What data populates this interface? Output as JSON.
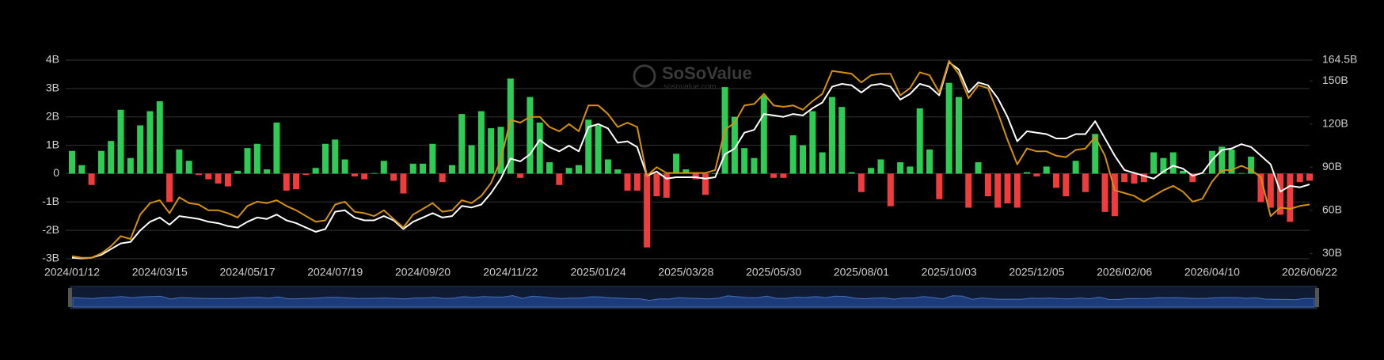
{
  "chart_data": {
    "type": "bar",
    "watermark": "SoSoValue",
    "watermark_sub": "sosovalue.com",
    "categories": [
      "2024/01/12",
      null,
      null,
      null,
      null,
      null,
      null,
      null,
      null,
      "2024/03/15",
      null,
      null,
      null,
      null,
      null,
      null,
      null,
      null,
      "2024/05/17",
      null,
      null,
      null,
      null,
      null,
      null,
      null,
      null,
      "2024/07/19",
      null,
      null,
      null,
      null,
      null,
      null,
      null,
      null,
      "2024/09/20",
      null,
      null,
      null,
      null,
      null,
      null,
      null,
      null,
      "2024/11/22",
      null,
      null,
      null,
      null,
      null,
      null,
      null,
      null,
      "2025/01/24",
      null,
      null,
      null,
      null,
      null,
      null,
      null,
      null,
      "2025/03/28",
      null,
      null,
      null,
      null,
      null,
      null,
      null,
      null,
      "2025/05/30",
      null,
      null,
      null,
      null,
      null,
      null,
      null,
      null,
      "2025/08/01",
      null,
      null,
      null,
      null,
      null,
      null,
      null,
      null,
      "2025/10/03",
      null,
      null,
      null,
      null,
      null,
      null,
      null,
      null,
      "2025/12/05",
      null,
      null,
      null,
      null,
      null,
      null,
      null,
      null,
      "2026/02/06",
      null,
      null,
      null,
      null,
      null,
      null,
      null,
      null,
      "2026/04/10",
      null,
      null,
      null,
      null,
      null,
      null,
      null,
      null,
      null,
      "2026/06/22"
    ],
    "series": [
      {
        "type": "bar",
        "positive_color": "#2ecc55",
        "negative_color": "#f03c3c",
        "values": [
          0.8,
          0.3,
          -0.4,
          0.8,
          1.15,
          2.25,
          0.55,
          1.7,
          2.2,
          2.55,
          -1.0,
          0.85,
          0.45,
          -0.05,
          -0.2,
          -0.35,
          -0.45,
          0.1,
          0.9,
          1.05,
          0.15,
          1.8,
          -0.6,
          -0.55,
          -0.05,
          0.2,
          1.05,
          1.2,
          0.5,
          -0.1,
          -0.2,
          0.02,
          0.45,
          -0.25,
          -0.7,
          0.35,
          0.35,
          1.05,
          -0.3,
          0.3,
          2.1,
          1.0,
          2.2,
          1.6,
          1.65,
          3.35,
          -0.15,
          2.7,
          1.8,
          0.4,
          -0.4,
          0.2,
          0.3,
          1.9,
          1.7,
          0.5,
          0.15,
          -0.6,
          -0.6,
          -2.6,
          -0.8,
          -0.85,
          0.7,
          0.15,
          -0.2,
          -0.75,
          0.02,
          3.05,
          2.0,
          0.9,
          0.55,
          2.75,
          -0.15,
          -0.15,
          1.35,
          1.0,
          2.2,
          0.75,
          2.7,
          2.35,
          0.05,
          -0.65,
          0.2,
          0.5,
          -1.15,
          0.4,
          0.25,
          2.3,
          0.85,
          -0.9,
          3.2,
          2.7,
          -1.2,
          0.4,
          -0.8,
          -1.2,
          -1.05,
          -1.2,
          0.05,
          -0.1,
          0.25,
          -0.5,
          -0.8,
          0.45,
          -0.65,
          1.4,
          -1.35,
          -1.5,
          -0.3,
          -0.35,
          -0.3,
          0.75,
          0.55,
          0.75,
          0.1,
          -0.3,
          0.02,
          0.8,
          0.95,
          0.85,
          0.02,
          0.6,
          -1.0,
          -1.2,
          -1.45,
          -1.7,
          -0.3,
          -0.25
        ]
      },
      {
        "type": "line",
        "axis": "y2",
        "color": "#ffffff",
        "values": [
          27,
          26.5,
          27,
          29,
          33,
          37,
          38,
          46,
          52,
          55,
          50,
          56,
          55,
          54,
          52,
          51,
          49,
          48,
          52,
          55,
          54,
          57,
          53,
          51,
          48,
          45,
          47,
          59,
          60,
          55,
          53,
          53,
          56,
          53,
          47,
          52,
          55,
          58,
          55,
          56,
          63,
          62,
          64,
          72,
          82,
          96,
          94,
          99,
          109,
          104,
          101,
          105,
          101,
          118,
          120,
          117,
          107,
          108,
          104,
          84,
          87,
          82,
          83,
          83,
          83,
          82,
          83,
          99,
          103,
          114,
          116,
          127,
          126,
          125,
          127,
          126,
          131,
          135,
          146,
          148,
          147,
          142,
          147,
          148,
          146,
          137,
          141,
          148,
          146,
          140,
          163,
          158,
          142,
          149,
          147,
          138,
          125,
          108,
          115,
          114,
          113,
          110,
          110,
          113,
          113,
          122,
          110,
          98,
          88,
          86,
          84,
          82,
          87,
          91,
          89,
          84,
          86,
          95,
          102,
          103,
          106,
          104,
          98,
          92,
          73,
          77,
          76,
          78
        ]
      },
      {
        "type": "line",
        "axis": "y2",
        "color": "#d4900f",
        "values": [
          28,
          27,
          27,
          30,
          35,
          42,
          40,
          57,
          65,
          67,
          58,
          69,
          65,
          64,
          60,
          60,
          58,
          55,
          63,
          66,
          65,
          67,
          63,
          60,
          56,
          52,
          53,
          64,
          66,
          59,
          58,
          56,
          60,
          54,
          48,
          57,
          61,
          65,
          59,
          60,
          67,
          65,
          70,
          79,
          95,
          123,
          121,
          125,
          125,
          118,
          115,
          120,
          115,
          133,
          133,
          127,
          118,
          121,
          118,
          84,
          90,
          86,
          86,
          86,
          86,
          86,
          88,
          116,
          121,
          133,
          134,
          141,
          133,
          132,
          133,
          130,
          136,
          141,
          157,
          156,
          155,
          149,
          154,
          155,
          155,
          140,
          145,
          156,
          154,
          142,
          164,
          155,
          138,
          147,
          145,
          128,
          109,
          92,
          103,
          101,
          101,
          98,
          97,
          102,
          103,
          111,
          98,
          74,
          72,
          70,
          66,
          70,
          74,
          77,
          73,
          66,
          68,
          80,
          88,
          88,
          91,
          88,
          83,
          56,
          62,
          61,
          63,
          64
        ]
      }
    ],
    "ylim": [
      -3,
      4
    ],
    "yticks": [
      {
        "value": -3,
        "label": "-3B"
      },
      {
        "value": -2,
        "label": "-2B"
      },
      {
        "value": -1,
        "label": "-1B"
      },
      0,
      {
        "value": 1,
        "label": "1B"
      },
      {
        "value": 2,
        "label": "2B"
      },
      {
        "value": 3,
        "label": "3B"
      },
      {
        "value": 4,
        "label": "4B"
      }
    ],
    "y2lim": [
      26.3,
      164.5
    ],
    "y2ticks": [
      {
        "value": 30,
        "label": "30B"
      },
      {
        "value": 60,
        "label": "60B"
      },
      {
        "value": 90,
        "label": "90B"
      },
      {
        "value": 120,
        "label": "120B"
      },
      {
        "value": 150,
        "label": "150B"
      },
      {
        "value": 164.5,
        "label": "164.5B"
      }
    ],
    "grid": true,
    "grid_color": "#333333",
    "navigator_color": "#1c3b7a"
  }
}
